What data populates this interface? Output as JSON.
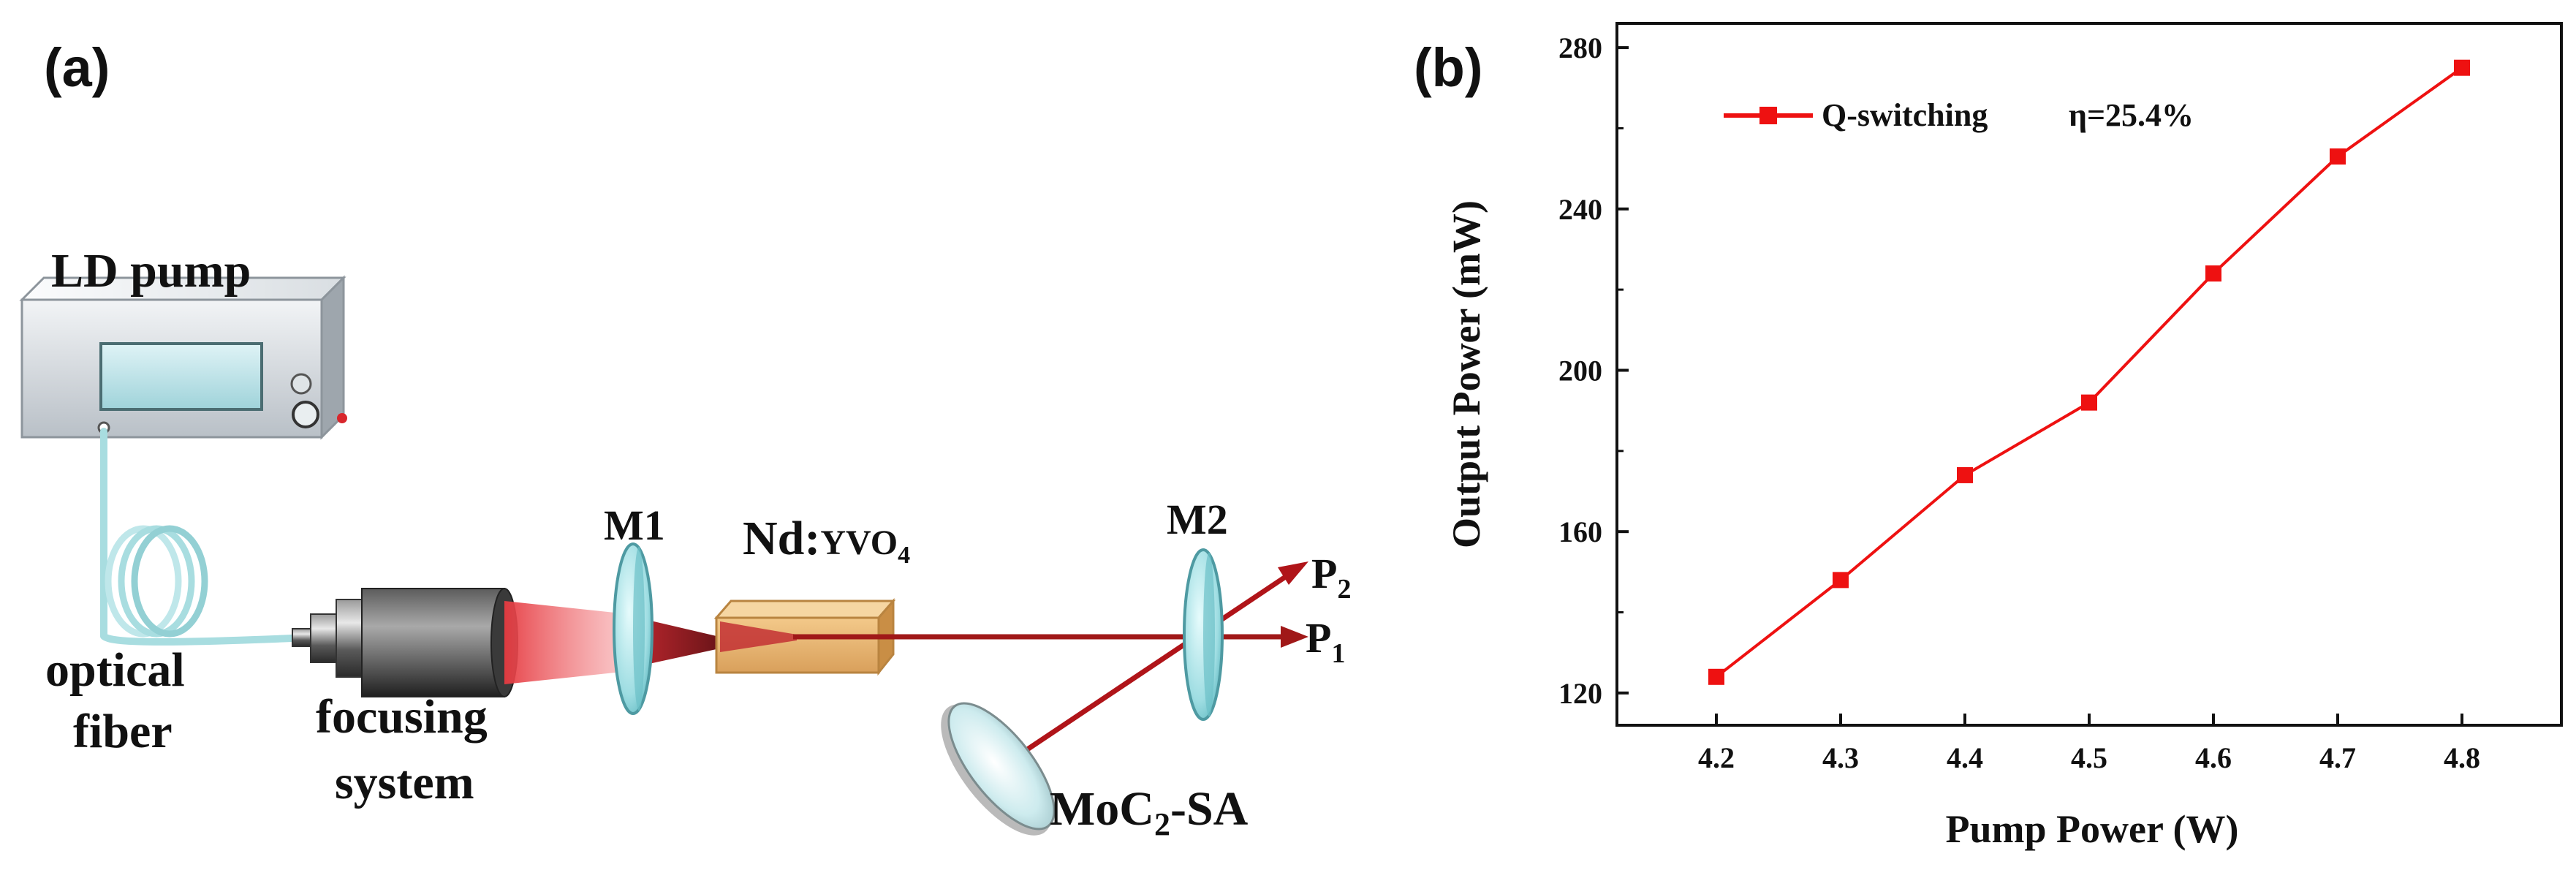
{
  "panel_a": {
    "panel_label": "(a)",
    "ld_pump_label": "LD pump",
    "fiber_label_line1": "optical",
    "fiber_label_line2": "fiber",
    "focusing_label_line1": "focusing",
    "focusing_label_line2": "system",
    "m1_label": "M1",
    "crystal_label_main": "Nd:",
    "crystal_label_formula": "YVO",
    "crystal_label_sub": "4",
    "m2_label": "M2",
    "p2_label": "P",
    "p2_sub": "2",
    "p1_label": "P",
    "p1_sub": "1",
    "sa_label_main": "MoC",
    "sa_label_sub": "2",
    "sa_label_suffix": "-SA",
    "colors": {
      "beam": "#a01818",
      "pump_glow": "#e0353a",
      "fiber": "#a8dde0",
      "crystal": "#e8b46a",
      "mirror": "#8fd6dc"
    }
  },
  "chart_data": {
    "type": "line",
    "panel_label": "(b)",
    "title": "",
    "xlabel": "Pump Power (W)",
    "ylabel": "Output Power (mW)",
    "xlim": [
      4.12,
      4.88
    ],
    "ylim": [
      112,
      286
    ],
    "x_ticks": [
      4.2,
      4.3,
      4.4,
      4.5,
      4.6,
      4.7,
      4.8
    ],
    "x_tick_labels": [
      "4.2",
      "4.3",
      "4.4",
      "4.5",
      "4.6",
      "4.7",
      "4.8"
    ],
    "y_ticks": [
      120,
      160,
      200,
      240,
      280
    ],
    "y_tick_labels": [
      "120",
      "160",
      "200",
      "240",
      "280"
    ],
    "grid": false,
    "legend_position": "top-left",
    "series": [
      {
        "name": "Q-switching",
        "annotation": "η=25.4%",
        "color": "#ee1111",
        "marker": "square",
        "x": [
          4.2,
          4.3,
          4.4,
          4.5,
          4.6,
          4.7,
          4.8
        ],
        "values": [
          124,
          148,
          174,
          192,
          224,
          253,
          275
        ]
      }
    ]
  }
}
